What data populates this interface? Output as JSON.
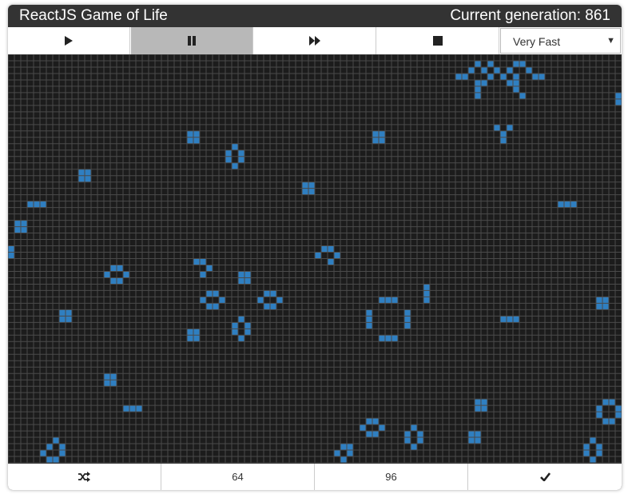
{
  "title": "ReactJS Game of Life",
  "generation_label": "Current generation: 861",
  "controls": [
    {
      "icon": "play-icon",
      "active": false
    },
    {
      "icon": "pause-icon",
      "active": true
    },
    {
      "icon": "fast-forward-icon",
      "active": false
    },
    {
      "icon": "stop-icon",
      "active": false
    }
  ],
  "speed": {
    "selected": "Very Fast"
  },
  "colors": {
    "live_cell": "#2f7fc1",
    "dead_cell": "#1c1c1c",
    "grid_line": "#4a4a4a",
    "frame": "#333333"
  },
  "grid": {
    "cols": 96,
    "rows": 64,
    "live_cells": [
      [
        73,
        1
      ],
      [
        75,
        1
      ],
      [
        79,
        1
      ],
      [
        80,
        1
      ],
      [
        72,
        2
      ],
      [
        74,
        2
      ],
      [
        76,
        2
      ],
      [
        78,
        2
      ],
      [
        81,
        2
      ],
      [
        70,
        3
      ],
      [
        71,
        3
      ],
      [
        75,
        3
      ],
      [
        77,
        3
      ],
      [
        79,
        3
      ],
      [
        82,
        3
      ],
      [
        83,
        3
      ],
      [
        73,
        4
      ],
      [
        74,
        4
      ],
      [
        78,
        4
      ],
      [
        79,
        4
      ],
      [
        73,
        5
      ],
      [
        79,
        5
      ],
      [
        73,
        6
      ],
      [
        80,
        6
      ],
      [
        95,
        6
      ],
      [
        95,
        7
      ],
      [
        28,
        12
      ],
      [
        29,
        12
      ],
      [
        57,
        12
      ],
      [
        58,
        12
      ],
      [
        77,
        12
      ],
      [
        76,
        11
      ],
      [
        78,
        11
      ],
      [
        28,
        13
      ],
      [
        29,
        13
      ],
      [
        57,
        13
      ],
      [
        58,
        13
      ],
      [
        77,
        13
      ],
      [
        35,
        14
      ],
      [
        34,
        15
      ],
      [
        36,
        15
      ],
      [
        34,
        16
      ],
      [
        36,
        16
      ],
      [
        35,
        17
      ],
      [
        11,
        18
      ],
      [
        12,
        18
      ],
      [
        11,
        19
      ],
      [
        12,
        19
      ],
      [
        46,
        20
      ],
      [
        47,
        20
      ],
      [
        46,
        21
      ],
      [
        47,
        21
      ],
      [
        3,
        23
      ],
      [
        4,
        23
      ],
      [
        5,
        23
      ],
      [
        86,
        23
      ],
      [
        87,
        23
      ],
      [
        88,
        23
      ],
      [
        1,
        26
      ],
      [
        2,
        26
      ],
      [
        1,
        27
      ],
      [
        2,
        27
      ],
      [
        0,
        30
      ],
      [
        0,
        31
      ],
      [
        49,
        30
      ],
      [
        50,
        30
      ],
      [
        48,
        31
      ],
      [
        51,
        31
      ],
      [
        50,
        32
      ],
      [
        29,
        32
      ],
      [
        30,
        32
      ],
      [
        31,
        33
      ],
      [
        30,
        34
      ],
      [
        16,
        33
      ],
      [
        17,
        33
      ],
      [
        15,
        34
      ],
      [
        18,
        34
      ],
      [
        16,
        35
      ],
      [
        17,
        35
      ],
      [
        36,
        34
      ],
      [
        37,
        34
      ],
      [
        36,
        35
      ],
      [
        37,
        35
      ],
      [
        65,
        36
      ],
      [
        65,
        37
      ],
      [
        65,
        38
      ],
      [
        31,
        37
      ],
      [
        32,
        37
      ],
      [
        30,
        38
      ],
      [
        33,
        38
      ],
      [
        31,
        39
      ],
      [
        32,
        39
      ],
      [
        40,
        37
      ],
      [
        41,
        37
      ],
      [
        39,
        38
      ],
      [
        42,
        38
      ],
      [
        40,
        39
      ],
      [
        41,
        39
      ],
      [
        58,
        38
      ],
      [
        59,
        38
      ],
      [
        60,
        38
      ],
      [
        92,
        38
      ],
      [
        93,
        38
      ],
      [
        92,
        39
      ],
      [
        93,
        39
      ],
      [
        8,
        40
      ],
      [
        9,
        40
      ],
      [
        8,
        41
      ],
      [
        9,
        41
      ],
      [
        56,
        40
      ],
      [
        56,
        41
      ],
      [
        56,
        42
      ],
      [
        62,
        40
      ],
      [
        62,
        41
      ],
      [
        62,
        42
      ],
      [
        77,
        41
      ],
      [
        78,
        41
      ],
      [
        79,
        41
      ],
      [
        36,
        41
      ],
      [
        35,
        42
      ],
      [
        37,
        42
      ],
      [
        35,
        43
      ],
      [
        37,
        43
      ],
      [
        36,
        44
      ],
      [
        28,
        43
      ],
      [
        29,
        43
      ],
      [
        28,
        44
      ],
      [
        29,
        44
      ],
      [
        58,
        44
      ],
      [
        59,
        44
      ],
      [
        60,
        44
      ],
      [
        15,
        50
      ],
      [
        16,
        50
      ],
      [
        15,
        51
      ],
      [
        16,
        51
      ],
      [
        18,
        55
      ],
      [
        19,
        55
      ],
      [
        20,
        55
      ],
      [
        73,
        54
      ],
      [
        74,
        54
      ],
      [
        73,
        55
      ],
      [
        74,
        55
      ],
      [
        93,
        54
      ],
      [
        94,
        54
      ],
      [
        92,
        55
      ],
      [
        95,
        55
      ],
      [
        92,
        56
      ],
      [
        95,
        56
      ],
      [
        93,
        57
      ],
      [
        94,
        57
      ],
      [
        56,
        57
      ],
      [
        57,
        57
      ],
      [
        55,
        58
      ],
      [
        58,
        58
      ],
      [
        56,
        59
      ],
      [
        57,
        59
      ],
      [
        63,
        58
      ],
      [
        62,
        59
      ],
      [
        64,
        59
      ],
      [
        62,
        60
      ],
      [
        64,
        60
      ],
      [
        63,
        61
      ],
      [
        72,
        59
      ],
      [
        73,
        59
      ],
      [
        72,
        60
      ],
      [
        73,
        60
      ],
      [
        7,
        60
      ],
      [
        6,
        61
      ],
      [
        8,
        61
      ],
      [
        5,
        62
      ],
      [
        8,
        62
      ],
      [
        6,
        63
      ],
      [
        7,
        63
      ],
      [
        91,
        60
      ],
      [
        90,
        61
      ],
      [
        92,
        61
      ],
      [
        90,
        62
      ],
      [
        92,
        62
      ],
      [
        91,
        63
      ],
      [
        52,
        61
      ],
      [
        53,
        61
      ],
      [
        51,
        62
      ],
      [
        53,
        62
      ],
      [
        52,
        63
      ]
    ]
  },
  "footer": [
    {
      "label": "",
      "icon": "shuffle-icon"
    },
    {
      "label": "64",
      "icon": ""
    },
    {
      "label": "96",
      "icon": ""
    },
    {
      "label": "",
      "icon": "check-icon"
    }
  ]
}
